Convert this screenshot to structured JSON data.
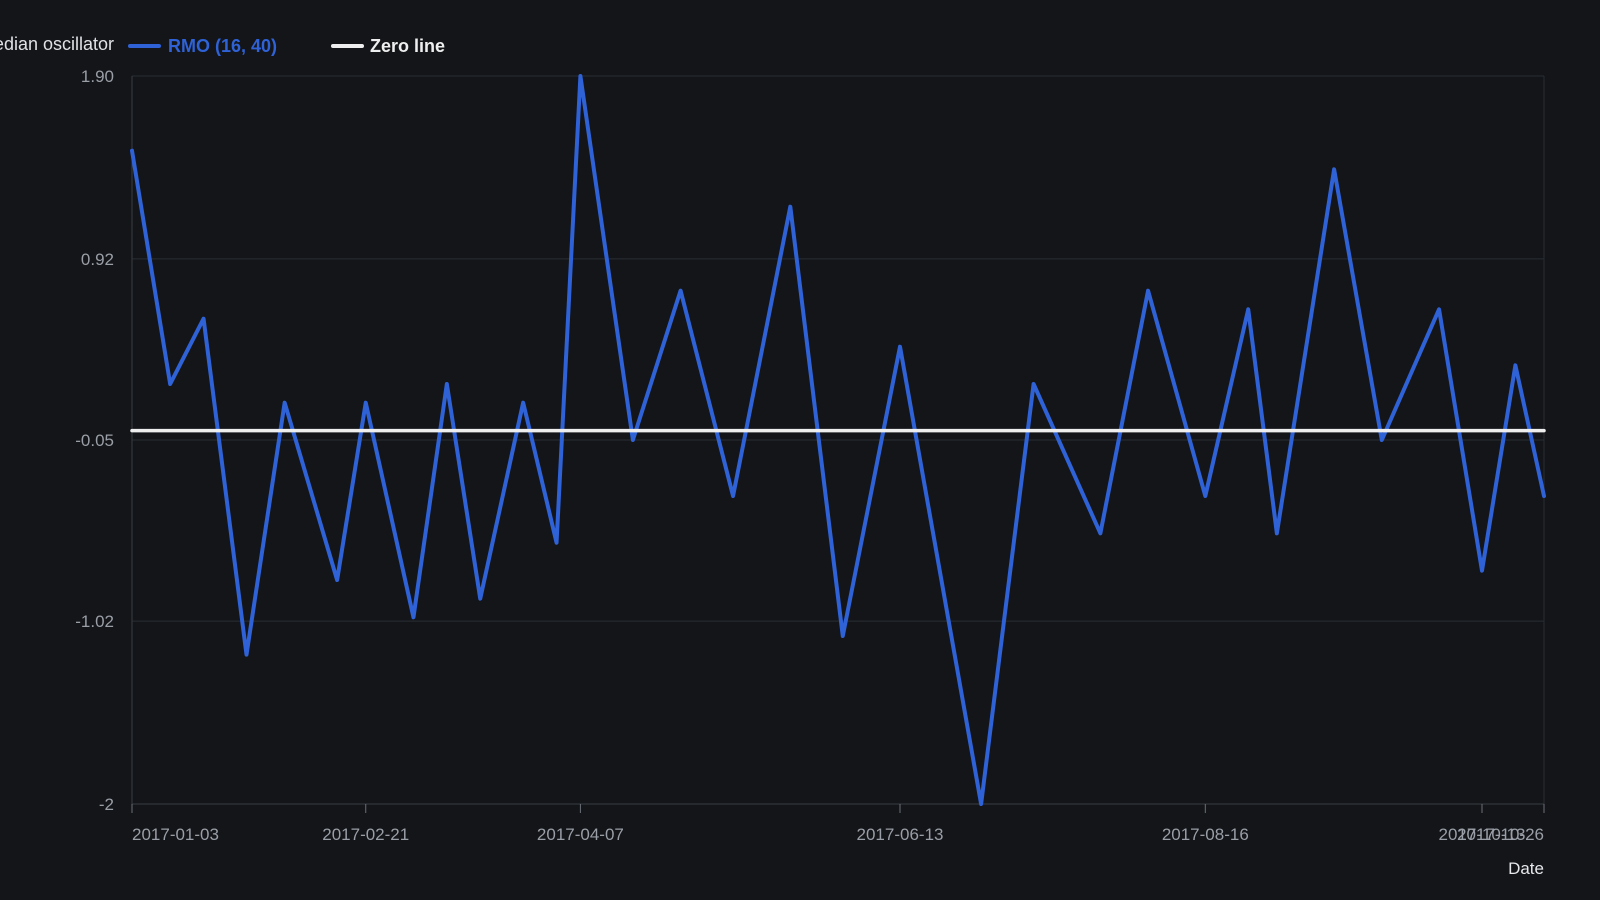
{
  "chart_data": {
    "type": "line",
    "legend": {
      "title": "Relative median oscillator",
      "position": "top-left"
    },
    "xlabel": "Date",
    "ylabel": "",
    "ylim": [
      -2,
      1.9
    ],
    "y_ticks": [
      "1.90",
      "0.92",
      "-0.05",
      "-1.02",
      "-2"
    ],
    "x_ticks": [
      {
        "date": "2017-01-03",
        "label": "2017-01-03"
      },
      {
        "date": "2017-02-21",
        "label": "2017-02-21"
      },
      {
        "date": "2017-04-07",
        "label": "2017-04-07"
      },
      {
        "date": "2017-06-13",
        "label": "2017-06-13"
      },
      {
        "date": "2017-08-16",
        "label": "2017-08-16"
      },
      {
        "date": "2017-10-13",
        "label": "2017-10-13"
      },
      {
        "date": "2017-10-26",
        "label": "2017-10-26"
      }
    ],
    "x_range": [
      "2017-01-03",
      "2017-10-26"
    ],
    "grid": true,
    "series": [
      {
        "name": "RMO (16, 40)",
        "color": "#2f62d6",
        "x": [
          "2017-01-03",
          "2017-01-11",
          "2017-01-18",
          "2017-01-27",
          "2017-02-04",
          "2017-02-15",
          "2017-02-21",
          "2017-03-03",
          "2017-03-10",
          "2017-03-17",
          "2017-03-26",
          "2017-04-02",
          "2017-04-07",
          "2017-04-18",
          "2017-04-28",
          "2017-05-09",
          "2017-05-21",
          "2017-06-01",
          "2017-06-13",
          "2017-06-30",
          "2017-07-11",
          "2017-07-25",
          "2017-08-04",
          "2017-08-16",
          "2017-08-25",
          "2017-08-31",
          "2017-09-12",
          "2017-09-22",
          "2017-10-04",
          "2017-10-13",
          "2017-10-20",
          "2017-10-26"
        ],
        "y": [
          1.5,
          0.25,
          0.6,
          -1.2,
          0.15,
          -0.8,
          0.15,
          -1.0,
          0.25,
          -0.9,
          0.15,
          -0.6,
          1.9,
          -0.05,
          0.75,
          -0.35,
          1.2,
          -1.1,
          0.45,
          -2.0,
          0.25,
          -0.55,
          0.75,
          -0.35,
          0.65,
          -0.55,
          1.4,
          -0.05,
          0.65,
          -0.75,
          0.35,
          -0.35
        ]
      },
      {
        "name": "Zero line",
        "color": "#eeeeee",
        "x": [
          "2017-01-03",
          "2017-10-26"
        ],
        "y": [
          0,
          0
        ]
      }
    ]
  }
}
